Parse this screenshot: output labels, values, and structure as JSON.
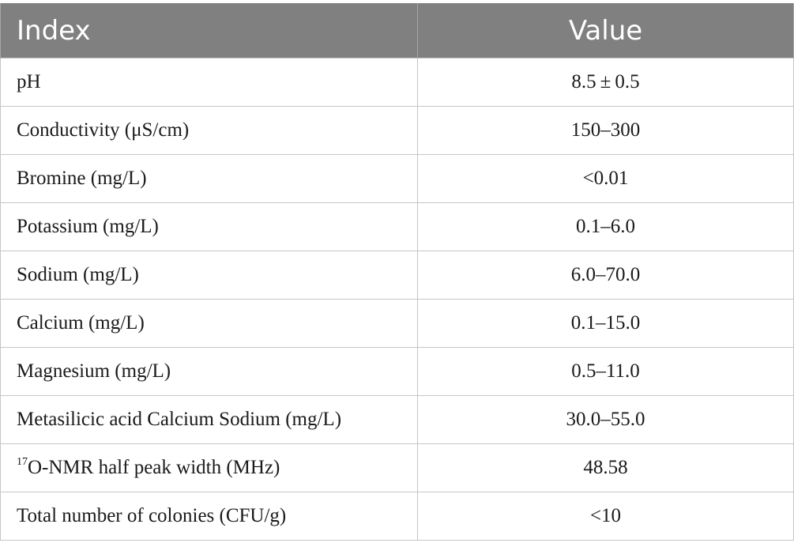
{
  "table": {
    "headers": {
      "index": "Index",
      "value": "Value"
    },
    "rows": [
      {
        "index": "pH",
        "value": "8.5 ± 0.5"
      },
      {
        "index": "Conductivity (μS/cm)",
        "value": "150–300"
      },
      {
        "index": "Bromine (mg/L)",
        "value": "<0.01"
      },
      {
        "index": "Potassium (mg/L)",
        "value": "0.1–6.0"
      },
      {
        "index": "Sodium (mg/L)",
        "value": "6.0–70.0"
      },
      {
        "index": "Calcium (mg/L)",
        "value": "0.1–15.0"
      },
      {
        "index": "Magnesium (mg/L)",
        "value": "0.5–11.0"
      },
      {
        "index": "Metasilicic acid Calcium Sodium (mg/L)",
        "value": "30.0–55.0"
      },
      {
        "index_sup": "17",
        "index": "O-NMR half peak width (MHz)",
        "value": "48.58"
      },
      {
        "index": "Total number of colonies (CFU/g)",
        "value": "<10"
      }
    ]
  }
}
